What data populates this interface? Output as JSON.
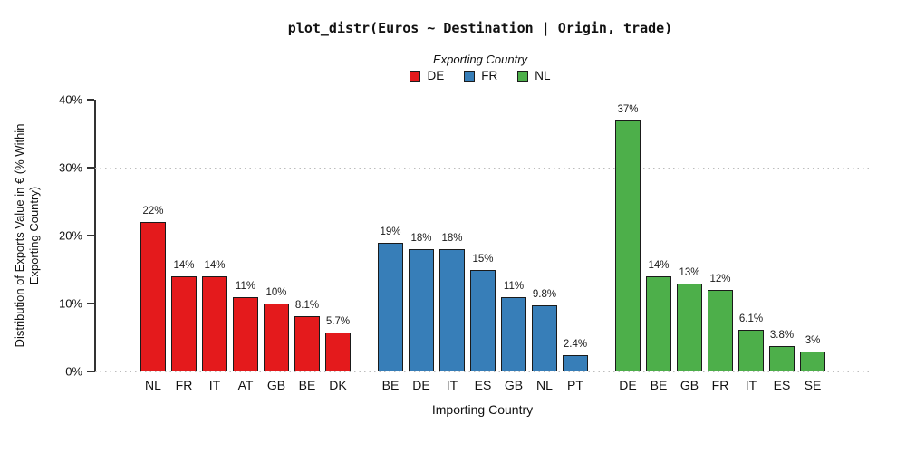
{
  "chart_data": {
    "type": "bar",
    "title": "plot_distr(Euros ~ Destination | Origin, trade)",
    "legend": {
      "title": "Exporting Country",
      "position": "top",
      "entries": [
        "DE",
        "FR",
        "NL"
      ]
    },
    "xlabel": "Importing Country",
    "ylabel": "Distribution of Exports Value in € (% Within Exporting Country)",
    "ylabel_lines": [
      "Distribution of Exports Value in € (% Within",
      "Exporting Country)"
    ],
    "ylim": [
      0,
      40
    ],
    "yticks": [
      0,
      10,
      20,
      30,
      40
    ],
    "ytick_labels": [
      "0%",
      "10%",
      "20%",
      "30%",
      "40%"
    ],
    "grid": {
      "style": "dotted",
      "horizontal_at": [
        0,
        10,
        20,
        30
      ]
    },
    "colors": {
      "DE": "#E41A1C",
      "FR": "#377EB8",
      "NL": "#4DAF4A",
      "bar_border": "#1a1a1a",
      "axis": "#333333",
      "grid": "#bdbdbd"
    },
    "series": [
      {
        "name": "DE",
        "color": "#E41A1C",
        "categories": [
          "NL",
          "FR",
          "IT",
          "AT",
          "GB",
          "BE",
          "DK"
        ],
        "values": [
          22,
          14,
          14,
          11,
          10,
          8.1,
          5.7
        ],
        "labels": [
          "22%",
          "14%",
          "14%",
          "11%",
          "10%",
          "8.1%",
          "5.7%"
        ]
      },
      {
        "name": "FR",
        "color": "#377EB8",
        "categories": [
          "BE",
          "DE",
          "IT",
          "ES",
          "GB",
          "NL",
          "PT"
        ],
        "values": [
          19,
          18,
          18,
          15,
          11,
          9.8,
          2.4
        ],
        "labels": [
          "19%",
          "18%",
          "18%",
          "15%",
          "11%",
          "9.8%",
          "2.4%"
        ]
      },
      {
        "name": "NL",
        "color": "#4DAF4A",
        "categories": [
          "DE",
          "BE",
          "GB",
          "FR",
          "IT",
          "ES",
          "SE"
        ],
        "values": [
          37,
          14,
          13,
          12,
          6.1,
          3.8,
          3
        ],
        "labels": [
          "37%",
          "14%",
          "13%",
          "12%",
          "6.1%",
          "3.8%",
          "3%"
        ]
      }
    ]
  }
}
